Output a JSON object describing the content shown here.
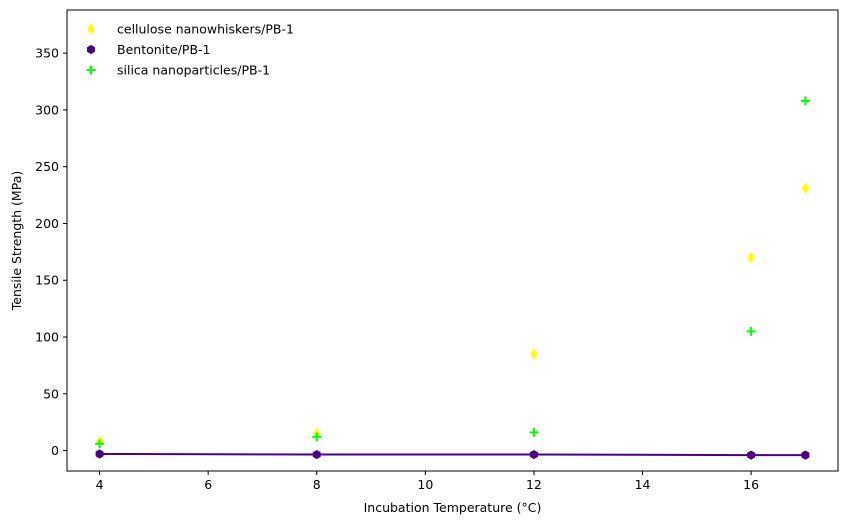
{
  "chart_data": {
    "type": "scatter",
    "title": "",
    "xlabel": "Incubation Temperature (°C)",
    "ylabel": "Tensile Strength (MPa)",
    "xlim": [
      3.4,
      17.6
    ],
    "ylim": [
      -18,
      388
    ],
    "xticks": [
      4,
      6,
      8,
      10,
      12,
      14,
      16
    ],
    "yticks": [
      0,
      50,
      100,
      150,
      200,
      250,
      300,
      350
    ],
    "grid": false,
    "legend_position": "top-left",
    "series": [
      {
        "name": "cellulose nanowhiskers/PB-1",
        "marker": "thin-diamond",
        "color": "#ffff00",
        "line": false,
        "x": [
          4,
          8,
          12,
          16,
          17
        ],
        "y": [
          8,
          15,
          85,
          170,
          231
        ]
      },
      {
        "name": "Bentonite/PB-1",
        "marker": "hexagon",
        "color": "#4b0082",
        "line": true,
        "x": [
          4,
          8,
          12,
          16,
          17
        ],
        "y": [
          -3,
          -3.5,
          -3.5,
          -4,
          -4
        ]
      },
      {
        "name": "silica nanoparticles/PB-1",
        "marker": "plus",
        "color": "#00ff00",
        "line": false,
        "x": [
          4,
          8,
          12,
          16,
          17
        ],
        "y": [
          6,
          12,
          16,
          105,
          308
        ]
      }
    ]
  }
}
